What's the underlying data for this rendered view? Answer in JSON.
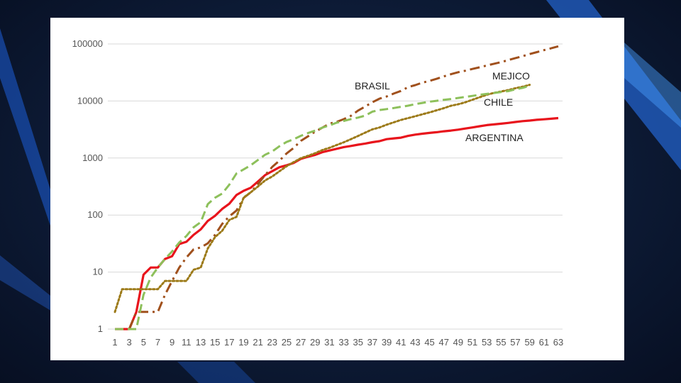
{
  "chart_data": {
    "type": "line",
    "y_scale": "log",
    "ylim": [
      1,
      100000
    ],
    "xlim": [
      1,
      63
    ],
    "y_ticks": [
      "1",
      "10",
      "100",
      "1000",
      "10000",
      "100000"
    ],
    "x_ticks": [
      "1",
      "3",
      "5",
      "7",
      "9",
      "11",
      "13",
      "15",
      "17",
      "19",
      "21",
      "23",
      "25",
      "27",
      "29",
      "31",
      "33",
      "35",
      "37",
      "39",
      "41",
      "43",
      "45",
      "47",
      "49",
      "51",
      "53",
      "55",
      "57",
      "59",
      "61",
      "63"
    ],
    "grid": true,
    "legend": "none",
    "series": [
      {
        "name": "ARGENTINA",
        "color": "#e8141c",
        "style": "solid",
        "points": [
          [
            1,
            1
          ],
          [
            2,
            1
          ],
          [
            3,
            1
          ],
          [
            4,
            2
          ],
          [
            5,
            9
          ],
          [
            6,
            12
          ],
          [
            7,
            12
          ],
          [
            8,
            17
          ],
          [
            9,
            19
          ],
          [
            10,
            31
          ],
          [
            11,
            34
          ],
          [
            12,
            45
          ],
          [
            13,
            56
          ],
          [
            14,
            79
          ],
          [
            15,
            97
          ],
          [
            16,
            128
          ],
          [
            17,
            158
          ],
          [
            18,
            225
          ],
          [
            19,
            266
          ],
          [
            20,
            301
          ],
          [
            21,
            387
          ],
          [
            22,
            502
          ],
          [
            23,
            589
          ],
          [
            24,
            690
          ],
          [
            25,
            745
          ],
          [
            26,
            820
          ],
          [
            27,
            966
          ],
          [
            28,
            1054
          ],
          [
            29,
            1133
          ],
          [
            30,
            1265
          ],
          [
            31,
            1353
          ],
          [
            32,
            1451
          ],
          [
            33,
            1554
          ],
          [
            34,
            1628
          ],
          [
            35,
            1715
          ],
          [
            36,
            1795
          ],
          [
            37,
            1894
          ],
          [
            38,
            1975
          ],
          [
            39,
            2142
          ],
          [
            40,
            2208
          ],
          [
            41,
            2277
          ],
          [
            42,
            2443
          ],
          [
            43,
            2571
          ],
          [
            44,
            2669
          ],
          [
            45,
            2758
          ],
          [
            46,
            2839
          ],
          [
            47,
            2941
          ],
          [
            48,
            3031
          ],
          [
            49,
            3144
          ],
          [
            50,
            3288
          ],
          [
            51,
            3435
          ],
          [
            52,
            3607
          ],
          [
            53,
            3780
          ],
          [
            54,
            3892
          ],
          [
            55,
            4003
          ],
          [
            56,
            4127
          ],
          [
            57,
            4285
          ],
          [
            58,
            4428
          ],
          [
            59,
            4532
          ],
          [
            60,
            4681
          ],
          [
            61,
            4783
          ],
          [
            62,
            4887
          ],
          [
            63,
            5020
          ]
        ]
      },
      {
        "name": "BRASIL",
        "color": "#a0501c",
        "style": "dashdot",
        "points": [
          [
            3,
            1
          ],
          [
            4,
            2
          ],
          [
            5,
            2
          ],
          [
            7,
            2
          ],
          [
            8,
            4
          ],
          [
            9,
            7
          ],
          [
            10,
            12
          ],
          [
            11,
            18
          ],
          [
            12,
            25
          ],
          [
            13,
            27
          ],
          [
            14,
            32
          ],
          [
            15,
            45
          ],
          [
            16,
            70
          ],
          [
            17,
            95
          ],
          [
            18,
            120
          ],
          [
            19,
            200
          ],
          [
            20,
            250
          ],
          [
            21,
            350
          ],
          [
            22,
            500
          ],
          [
            23,
            700
          ],
          [
            24,
            900
          ],
          [
            25,
            1200
          ],
          [
            26,
            1500
          ],
          [
            27,
            2000
          ],
          [
            28,
            2400
          ],
          [
            29,
            2900
          ],
          [
            30,
            3400
          ],
          [
            31,
            4000
          ],
          [
            32,
            4300
          ],
          [
            33,
            4800
          ],
          [
            34,
            5500
          ],
          [
            35,
            6800
          ],
          [
            36,
            8000
          ],
          [
            37,
            9500
          ],
          [
            38,
            11000
          ],
          [
            39,
            12000
          ],
          [
            40,
            13500
          ],
          [
            41,
            15000
          ],
          [
            42,
            17500
          ],
          [
            43,
            19000
          ],
          [
            44,
            21000
          ],
          [
            45,
            22500
          ],
          [
            46,
            24500
          ],
          [
            47,
            27000
          ],
          [
            48,
            29500
          ],
          [
            49,
            32000
          ],
          [
            50,
            34000
          ],
          [
            51,
            36500
          ],
          [
            52,
            39000
          ],
          [
            53,
            42000
          ],
          [
            54,
            45000
          ],
          [
            55,
            48000
          ],
          [
            56,
            52000
          ],
          [
            57,
            56500
          ],
          [
            58,
            61000
          ],
          [
            59,
            66500
          ],
          [
            60,
            72000
          ],
          [
            61,
            78000
          ],
          [
            62,
            84000
          ],
          [
            63,
            91000
          ]
        ]
      },
      {
        "name": "MEJICO",
        "color": "#9c7a18",
        "style": "dotted",
        "points": [
          [
            1,
            2
          ],
          [
            2,
            5
          ],
          [
            3,
            5
          ],
          [
            4,
            5
          ],
          [
            5,
            5
          ],
          [
            6,
            5
          ],
          [
            7,
            5
          ],
          [
            8,
            7
          ],
          [
            9,
            7
          ],
          [
            10,
            7
          ],
          [
            11,
            7
          ],
          [
            12,
            11
          ],
          [
            13,
            12
          ],
          [
            14,
            26
          ],
          [
            15,
            41
          ],
          [
            16,
            53
          ],
          [
            17,
            82
          ],
          [
            18,
            93
          ],
          [
            19,
            203
          ],
          [
            20,
            251
          ],
          [
            21,
            316
          ],
          [
            22,
            405
          ],
          [
            23,
            475
          ],
          [
            24,
            585
          ],
          [
            25,
            717
          ],
          [
            26,
            848
          ],
          [
            27,
            993
          ],
          [
            28,
            1094
          ],
          [
            29,
            1215
          ],
          [
            30,
            1378
          ],
          [
            31,
            1510
          ],
          [
            32,
            1688
          ],
          [
            33,
            1890
          ],
          [
            34,
            2143
          ],
          [
            35,
            2439
          ],
          [
            36,
            2785
          ],
          [
            37,
            3181
          ],
          [
            38,
            3441
          ],
          [
            39,
            3844
          ],
          [
            40,
            4219
          ],
          [
            41,
            4661
          ],
          [
            42,
            5014
          ],
          [
            43,
            5399
          ],
          [
            44,
            5847
          ],
          [
            45,
            6297
          ],
          [
            46,
            6875
          ],
          [
            47,
            7497
          ],
          [
            48,
            8261
          ],
          [
            49,
            8772
          ],
          [
            50,
            9501
          ],
          [
            51,
            10544
          ],
          [
            52,
            11633
          ],
          [
            53,
            12872
          ],
          [
            54,
            13842
          ],
          [
            55,
            14677
          ],
          [
            56,
            15529
          ],
          [
            57,
            16752
          ],
          [
            58,
            17799
          ],
          [
            59,
            19224
          ]
        ]
      },
      {
        "name": "CHILE",
        "color": "#8dc05b",
        "style": "dashed",
        "points": [
          [
            1,
            1
          ],
          [
            2,
            1
          ],
          [
            3,
            1
          ],
          [
            4,
            1
          ],
          [
            5,
            4
          ],
          [
            6,
            8
          ],
          [
            7,
            12
          ],
          [
            8,
            17
          ],
          [
            9,
            23
          ],
          [
            10,
            33
          ],
          [
            11,
            43
          ],
          [
            12,
            61
          ],
          [
            13,
            75
          ],
          [
            14,
            156
          ],
          [
            15,
            201
          ],
          [
            16,
            238
          ],
          [
            17,
            342
          ],
          [
            18,
            537
          ],
          [
            19,
            632
          ],
          [
            20,
            746
          ],
          [
            21,
            922
          ],
          [
            22,
            1142
          ],
          [
            23,
            1306
          ],
          [
            24,
            1610
          ],
          [
            25,
            1909
          ],
          [
            26,
            2139
          ],
          [
            27,
            2449
          ],
          [
            28,
            2738
          ],
          [
            29,
            3031
          ],
          [
            30,
            3404
          ],
          [
            31,
            3737
          ],
          [
            32,
            4161
          ],
          [
            33,
            4471
          ],
          [
            34,
            4815
          ],
          [
            35,
            5116
          ],
          [
            36,
            5546
          ],
          [
            37,
            6501
          ],
          [
            38,
            6927
          ],
          [
            39,
            7213
          ],
          [
            40,
            7525
          ],
          [
            41,
            7917
          ],
          [
            42,
            8273
          ],
          [
            43,
            8807
          ],
          [
            44,
            9252
          ],
          [
            45,
            9730
          ],
          [
            46,
            10088
          ],
          [
            47,
            10507
          ],
          [
            48,
            10832
          ],
          [
            49,
            11296
          ],
          [
            50,
            11812
          ],
          [
            51,
            12306
          ],
          [
            52,
            12858
          ],
          [
            53,
            13331
          ],
          [
            54,
            13813
          ],
          [
            55,
            14365
          ],
          [
            56,
            14885
          ],
          [
            57,
            16023
          ],
          [
            58,
            17008
          ],
          [
            59,
            18435
          ]
        ]
      }
    ]
  }
}
